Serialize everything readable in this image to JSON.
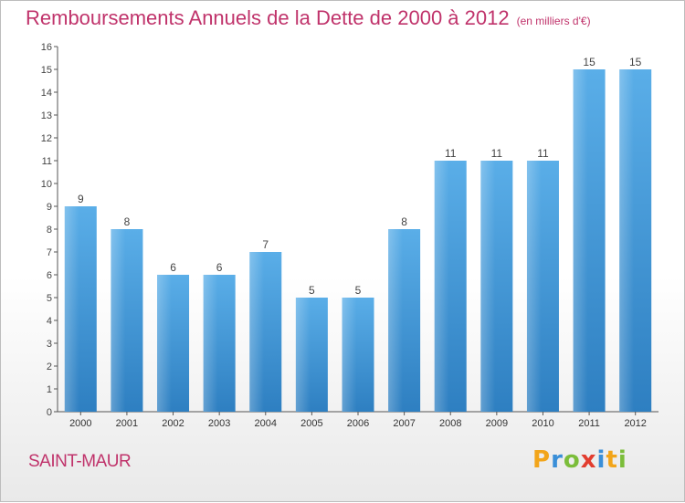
{
  "chart_data": {
    "type": "bar",
    "title": "Remboursements Annuels de la Dette de 2000 à 2012",
    "subtitle": "(en milliers d'€)",
    "categories": [
      "2000",
      "2001",
      "2002",
      "2003",
      "2004",
      "2005",
      "2006",
      "2007",
      "2008",
      "2009",
      "2010",
      "2011",
      "2012"
    ],
    "values": [
      9,
      8,
      6,
      6,
      7,
      5,
      5,
      8,
      11,
      11,
      11,
      15,
      15
    ],
    "ylim": [
      0,
      16
    ],
    "yticks": [
      0,
      1,
      2,
      3,
      4,
      5,
      6,
      7,
      8,
      9,
      10,
      11,
      12,
      13,
      14,
      15,
      16
    ],
    "xlabel": "",
    "ylabel": "",
    "grid": false,
    "bar_color": "#3a8fd8"
  },
  "footer": {
    "town": "SAINT-MAUR",
    "logo_letters": [
      "P",
      "r",
      "o",
      "x",
      "i",
      "t",
      "i"
    ]
  },
  "colors": {
    "accent": "#c0336b",
    "bar_top": "#5aaee8",
    "bar_bottom": "#2e7fc1"
  }
}
